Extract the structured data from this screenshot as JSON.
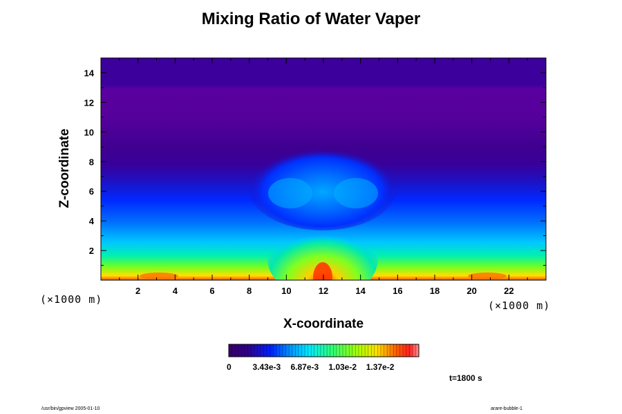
{
  "chart_data": {
    "type": "heatmap",
    "title": "Mixing Ratio of Water Vaper",
    "xlabel": "X-coordinate",
    "ylabel": "Z-coordinate",
    "x_unit": "(×1000 m)",
    "y_unit": "(×1000 m)",
    "xlim": [
      0,
      24
    ],
    "ylim": [
      0,
      15
    ],
    "x_ticks": [
      2,
      4,
      6,
      8,
      10,
      12,
      14,
      16,
      18,
      20,
      22
    ],
    "y_ticks": [
      2,
      4,
      6,
      8,
      10,
      12,
      14
    ],
    "colorbar": {
      "min": 0,
      "max": 0.0172,
      "tick_labels": [
        "0",
        "3.43e-3",
        "6.87e-3",
        "1.03e-2",
        "1.37e-2"
      ],
      "tick_values": [
        0,
        0.00343,
        0.00687,
        0.0103,
        0.0137
      ]
    },
    "annotation": "t=1800 s"
  },
  "footer": {
    "left": "/usr/bin/gpview 2005-01-10",
    "right": "arare-bubble-1"
  }
}
